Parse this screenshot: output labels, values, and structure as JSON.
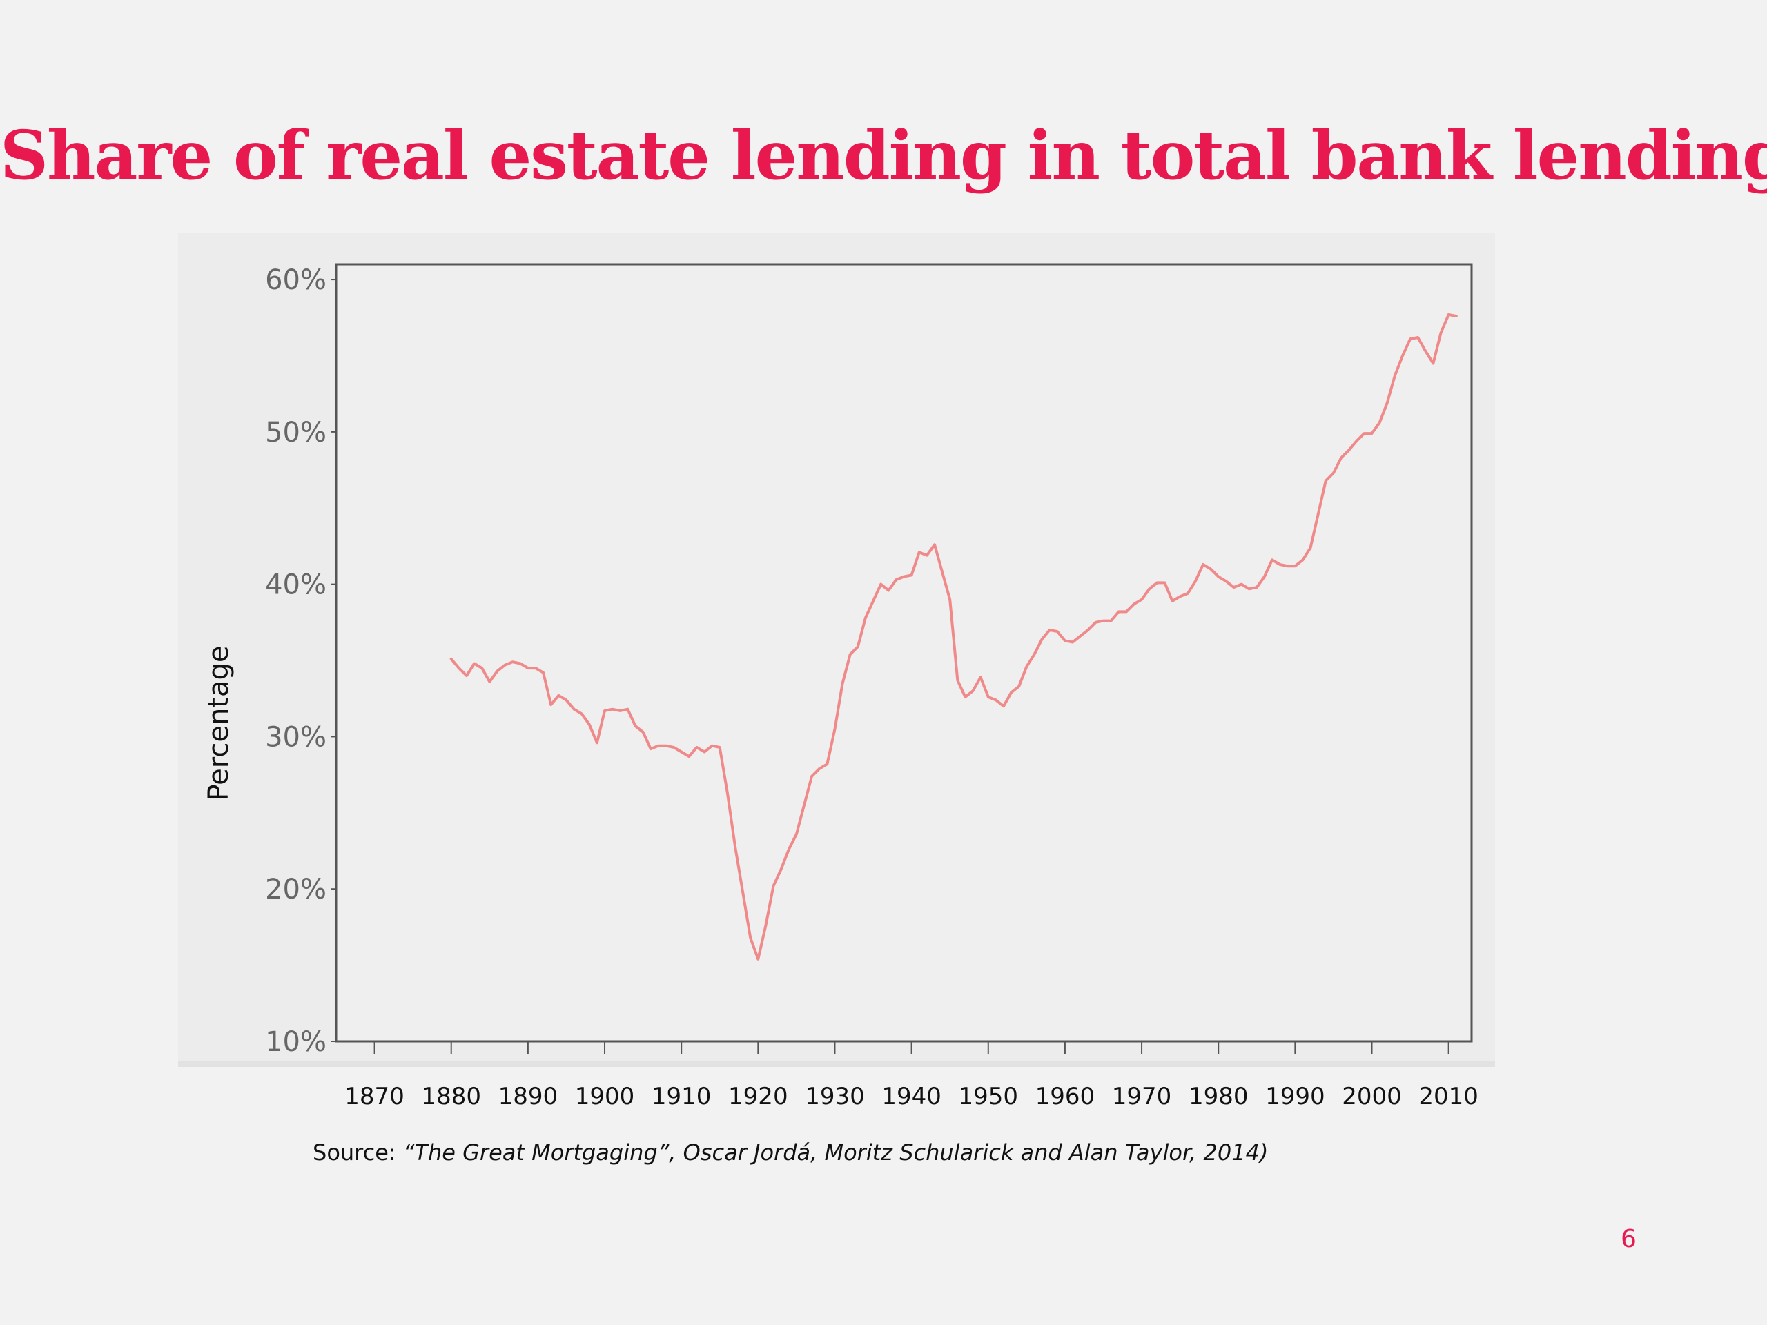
{
  "slide": {
    "title": "Share of real estate lending in total bank lending",
    "source_prefix": "Source: ",
    "source_work": "“The Great Mortgaging”, Oscar Jordá, Moritz Schularick and Alan Taylor, 2014)",
    "page_number": "6"
  },
  "colors": {
    "accent": "#e8194f",
    "series_line": "#f08a8a",
    "axis": "#555555",
    "tick_text": "#666666"
  },
  "chart_data": {
    "type": "line",
    "title": "Share of real estate lending in total bank lending",
    "xlabel": "",
    "ylabel": "Percentage",
    "xlim": [
      1865,
      2013
    ],
    "ylim": [
      10,
      61
    ],
    "y_ticks": [
      10,
      20,
      30,
      40,
      50,
      60
    ],
    "y_tick_labels": [
      "10%",
      "20%",
      "30%",
      "40%",
      "50%",
      "60%"
    ],
    "x_ticks": [
      1870,
      1880,
      1890,
      1900,
      1910,
      1920,
      1930,
      1940,
      1950,
      1960,
      1970,
      1980,
      1990,
      2000,
      2010
    ],
    "x_tick_labels": [
      "1870",
      "1880",
      "1890",
      "1900",
      "1910",
      "1920",
      "1930",
      "1940",
      "1950",
      "1960",
      "1970",
      "1980",
      "1990",
      "2000",
      "2010"
    ],
    "grid": false,
    "legend": "none",
    "series": [
      {
        "x": [
          1880,
          1881,
          1882,
          1883,
          1884,
          1885,
          1886,
          1887,
          1888,
          1889,
          1890,
          1891,
          1892,
          1893,
          1894,
          1895,
          1896,
          1897,
          1898,
          1899,
          1900,
          1901,
          1902,
          1903,
          1904,
          1905,
          1906,
          1907,
          1908,
          1909,
          1910,
          1911,
          1912,
          1913,
          1914,
          1915,
          1916,
          1917,
          1918,
          1919,
          1920,
          1921,
          1922,
          1923,
          1924,
          1925,
          1926,
          1927,
          1928,
          1929,
          1930,
          1931,
          1932,
          1933,
          1934,
          1935,
          1936,
          1937,
          1938,
          1939,
          1940,
          1941,
          1942,
          1943,
          1944,
          1945,
          1946,
          1947,
          1948,
          1949,
          1950,
          1951,
          1952,
          1953,
          1954,
          1955,
          1956,
          1957,
          1958,
          1959,
          1960,
          1961,
          1962,
          1963,
          1964,
          1965,
          1966,
          1967,
          1968,
          1969,
          1970,
          1971,
          1972,
          1973,
          1974,
          1975,
          1976,
          1977,
          1978,
          1979,
          1980,
          1981,
          1982,
          1983,
          1984,
          1985,
          1986,
          1987,
          1988,
          1989,
          1990,
          1991,
          1992,
          1993,
          1994,
          1995,
          1996,
          1997,
          1998,
          1999,
          2000,
          2001,
          2002,
          2003,
          2004,
          2005,
          2006,
          2007,
          2008,
          2009,
          2010,
          2011
        ],
        "values": [
          35.1,
          34.5,
          34.0,
          34.8,
          34.5,
          33.6,
          34.3,
          34.7,
          34.9,
          34.8,
          34.5,
          34.5,
          34.2,
          32.1,
          32.7,
          32.4,
          31.8,
          31.5,
          30.8,
          29.6,
          31.7,
          31.8,
          31.7,
          31.8,
          30.7,
          30.3,
          29.2,
          29.4,
          29.4,
          29.3,
          29.0,
          28.7,
          29.3,
          29.0,
          29.4,
          29.3,
          26.3,
          22.8,
          19.8,
          16.8,
          15.4,
          17.6,
          20.2,
          21.3,
          22.6,
          23.6,
          25.5,
          27.4,
          27.9,
          28.2,
          30.5,
          33.5,
          35.4,
          35.9,
          37.8,
          38.9,
          40.0,
          39.6,
          40.3,
          40.5,
          40.6,
          42.1,
          41.9,
          42.6,
          40.8,
          39.0,
          33.7,
          32.6,
          33.0,
          33.9,
          32.6,
          32.4,
          32.0,
          32.9,
          33.3,
          34.6,
          35.4,
          36.4,
          37.0,
          36.9,
          36.3,
          36.2,
          36.6,
          37.0,
          37.5,
          37.6,
          37.6,
          38.2,
          38.2,
          38.7,
          39.0,
          39.7,
          40.1,
          40.1,
          38.9,
          39.2,
          39.4,
          40.2,
          41.3,
          41.0,
          40.5,
          40.2,
          39.8,
          40.0,
          39.7,
          39.8,
          40.5,
          41.6,
          41.3,
          41.2,
          41.2,
          41.6,
          42.4,
          44.6,
          46.8,
          47.3,
          48.3,
          48.8,
          49.4,
          49.9,
          49.9,
          50.6,
          51.9,
          53.7,
          55.0,
          56.1,
          56.2,
          55.3,
          54.5,
          56.5,
          57.7,
          57.6
        ]
      }
    ]
  }
}
